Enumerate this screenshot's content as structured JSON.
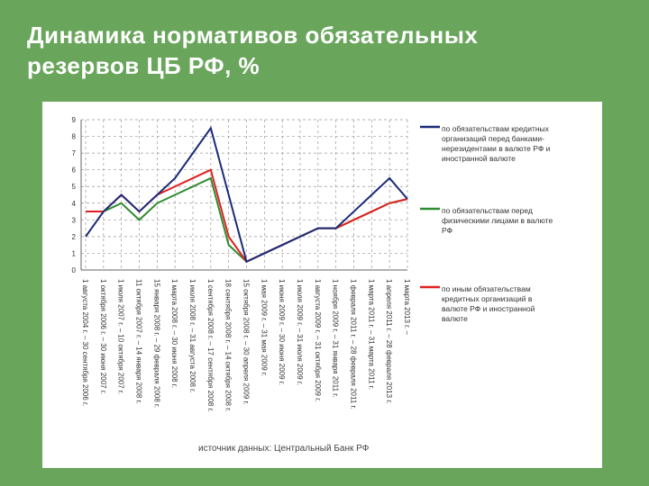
{
  "chart_data": {
    "type": "line",
    "title": "Динамика нормативов обязательных резервов ЦБ РФ, %",
    "categories": [
      "1 августа 2004 г. – 30 сентября 2006 г.",
      "1 октября 2006 г. – 30 июня 2007 г.",
      "1 июля 2007 г. – 10 октября 2007 г.",
      "11 октября 2007 г. – 14 января 2008 г.",
      "15 января 2008 г. – 29 февраля 2008 г.",
      "1 марта 2008 г. – 30 июня 2008 г.",
      "1 июля 2008 г. – 31 августа 2008 г.",
      "1 сентября 2008 г. – 17 сентября 2008 г.",
      "18 сентября 2008 г. – 14 октября 2008 г.",
      "15 октября 2008 г. – 30 апреля 2009 г.",
      "1 мая 2009 г. – 31 мая 2009 г.",
      "1 июня 2009 г. – 30 июня 2009 г.",
      "1 июля 2009 г. – 31 июля 2009 г.",
      "1 августа 2009 г. – 31 октября 2009 г.",
      "1 ноября 2009 г. – 31 января 2011 г.",
      "1 февраля 2011 г. – 28 февраля 2011 г.",
      "1 марта 2011 г. – 31 марта 2011 г.",
      "1 апреля 2011 г. – 28 февраля 2013 г.",
      "1 марта 2013 г. –"
    ],
    "series": [
      {
        "name": "по обязательствам кредитных организаций перед банками-нерезидентами в валюте РФ и иностранной валюте",
        "color": "#1c2a78",
        "values": [
          2,
          3.5,
          4.5,
          3.5,
          4.5,
          5.5,
          7,
          8.5,
          4.5,
          0.5,
          1,
          1.5,
          2,
          2.5,
          2.5,
          3.5,
          4.5,
          5.5,
          4.25
        ]
      },
      {
        "name": "по обязательствам перед физическими лицами в валюте РФ",
        "color": "#2e8b2e",
        "values": [
          3.5,
          3.5,
          4,
          3,
          4,
          4.5,
          5,
          5.5,
          1.5,
          0.5,
          1,
          1.5,
          2,
          2.5,
          2.5,
          3,
          3.5,
          4,
          4.25
        ]
      },
      {
        "name": "по иным обязательствам кредитных организаций в валюте РФ и иностранной валюте",
        "color": "#e02020",
        "values": [
          3.5,
          3.5,
          4.5,
          3.5,
          4.5,
          5,
          5.5,
          6,
          2,
          0.5,
          1,
          1.5,
          2,
          2.5,
          2.5,
          3,
          3.5,
          4,
          4.25
        ]
      }
    ],
    "ylim": [
      0,
      9
    ],
    "yticks": [
      0,
      1,
      2,
      3,
      4,
      5,
      6,
      7,
      8,
      9
    ],
    "grid": true,
    "source": "источник данных: Центральный Банк РФ"
  }
}
